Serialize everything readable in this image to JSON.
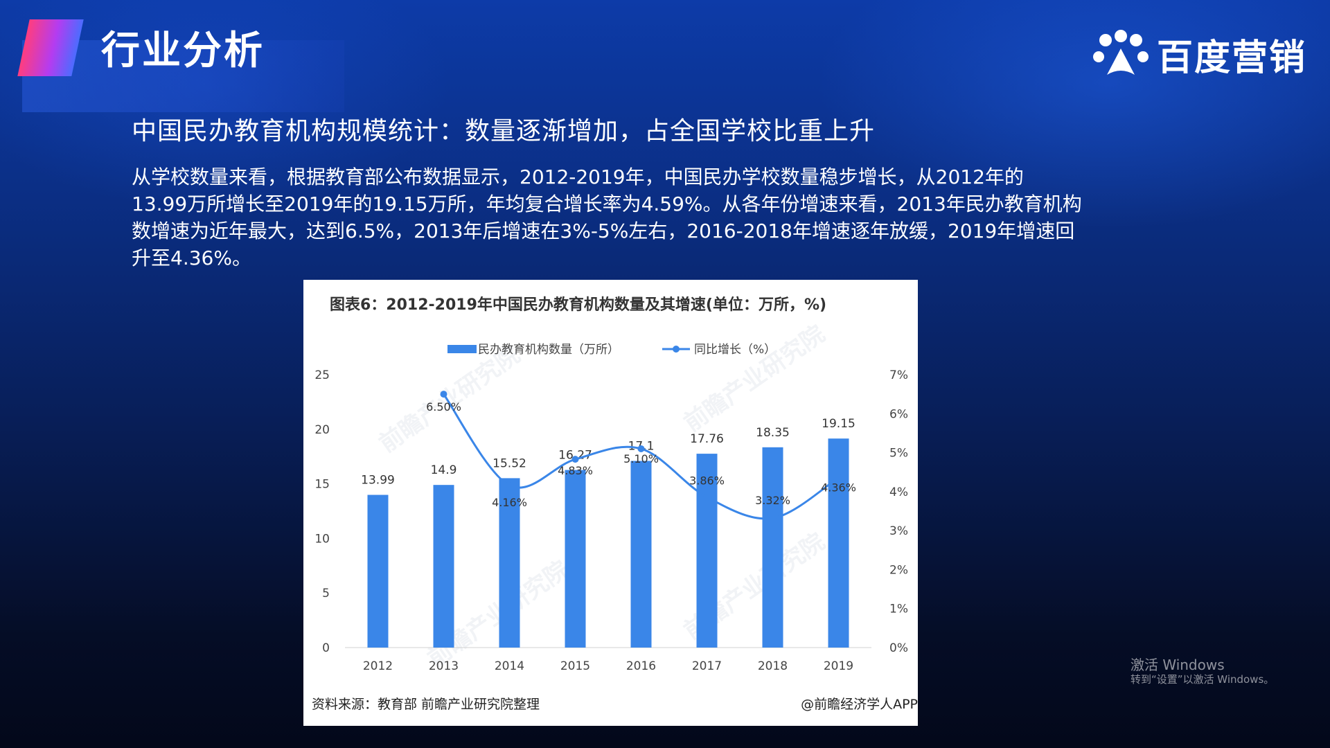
{
  "section_title": "行业分析",
  "logo": {
    "text": "百度营销",
    "icon": "baidu-paw-icon"
  },
  "heading": "中国民办教育机构规模统计：数量逐渐增加，占全国学校比重上升",
  "paragraph_lines": [
    "从学校数量来看，根据教育部公布数据显示，2012-2019年，中国民办学校数量稳步增长，从2012年的",
    "13.99万所增长至2019年的19.15万所，年均复合增长率为4.59%。从各年份增速来看，2013年民办教育机构",
    "数增速为近年最大，达到6.5%，2013年后增速在3%-5%左右，2016-2018年增速逐年放缓，2019年增速回",
    "升至4.36%。"
  ],
  "card": {
    "title": "图表6：2012-2019年中国民办教育机构数量及其增速(单位：万所，%)",
    "source": "资料来源：教育部 前瞻产业研究院整理",
    "credit": "@前瞻经济学人APP",
    "watermark": "前瞻产业研究院"
  },
  "windows_watermark": {
    "line1": "激活 Windows",
    "line2": "转到“设置”以激活 Windows。"
  },
  "colors": {
    "bar": "#3a86e8",
    "line": "#3a86e8"
  },
  "chart_data": {
    "type": "bar",
    "categories": [
      "2012",
      "2013",
      "2014",
      "2015",
      "2016",
      "2017",
      "2018",
      "2019"
    ],
    "series": [
      {
        "name": "民办教育机构数量（万所）",
        "type": "bar",
        "axis": "left",
        "values": [
          13.99,
          14.9,
          15.52,
          16.27,
          17.1,
          17.76,
          18.35,
          19.15
        ],
        "labels": [
          "13.99",
          "14.9",
          "15.52",
          "16.27",
          "17.1",
          "17.76",
          "18.35",
          "19.15"
        ]
      },
      {
        "name": "同比增长（%）",
        "type": "line",
        "axis": "right",
        "values": [
          6.5,
          4.16,
          4.83,
          5.1,
          3.86,
          3.32,
          4.36
        ],
        "x": [
          "2013",
          "2014",
          "2015",
          "2016",
          "2017",
          "2018",
          "2019"
        ],
        "labels": [
          "6.50%",
          "4.16%",
          "4.83%",
          "5.10%",
          "3.86%",
          "3.32%",
          "4.36%"
        ]
      }
    ],
    "left_axis": {
      "ticks": [
        "0",
        "5",
        "10",
        "15",
        "20",
        "25"
      ],
      "ylim": [
        0,
        25
      ]
    },
    "right_axis": {
      "ticks": [
        "0%",
        "1%",
        "2%",
        "3%",
        "4%",
        "5%",
        "6%",
        "7%"
      ],
      "ylim": [
        0,
        7
      ]
    },
    "legend_position": "top-center",
    "grid": false
  }
}
